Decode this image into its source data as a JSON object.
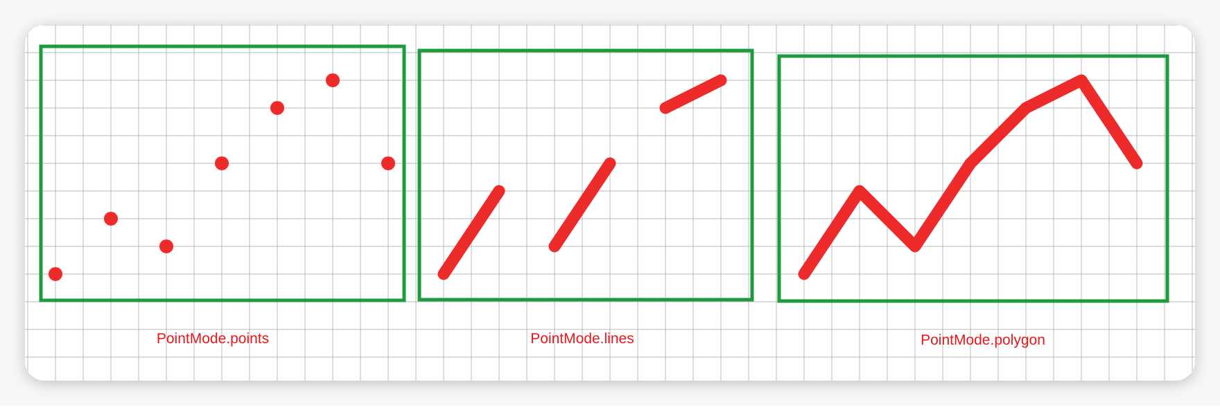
{
  "colors": {
    "background": "#f7f7f7",
    "card": "#ffffff",
    "grid": "#b8b8b8",
    "frame": "#1f9b3f",
    "mark": "#ee2b2b",
    "label": "#e8171c"
  },
  "panels": [
    {
      "mode": "points",
      "caption": "PointMode.points",
      "points": [
        [
          0,
          1
        ],
        [
          2,
          3
        ],
        [
          4,
          2
        ],
        [
          6,
          5
        ],
        [
          8,
          7
        ],
        [
          10,
          8
        ],
        [
          12,
          5
        ]
      ]
    },
    {
      "mode": "lines",
      "caption": "PointMode.lines",
      "points": [
        [
          0,
          1
        ],
        [
          2,
          4
        ],
        [
          4,
          2
        ],
        [
          6,
          5
        ],
        [
          8,
          7
        ],
        [
          10,
          8
        ]
      ]
    },
    {
      "mode": "polygon",
      "caption": "PointMode.polygon",
      "points": [
        [
          0,
          1
        ],
        [
          2,
          4
        ],
        [
          4,
          2
        ],
        [
          6,
          5
        ],
        [
          8,
          7
        ],
        [
          10,
          8
        ],
        [
          12,
          5
        ]
      ]
    }
  ]
}
